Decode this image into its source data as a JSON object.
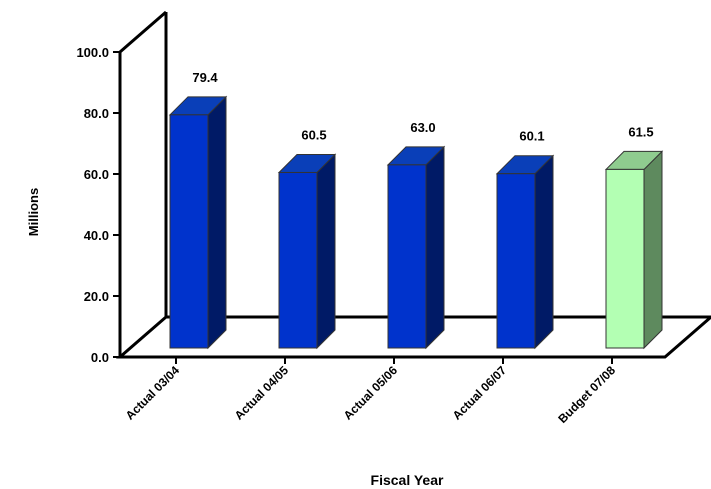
{
  "chart_data": {
    "type": "bar",
    "title": "",
    "xlabel": "Fiscal Year",
    "ylabel": "Millions",
    "ylim": [
      0,
      100
    ],
    "y_ticks": [
      "0.0",
      "20.0",
      "40.0",
      "60.0",
      "80.0",
      "100.0"
    ],
    "grid": false,
    "categories": [
      "Actual 03/04",
      "Actual 04/05",
      "Actual 05/06",
      "Actual 06/07",
      "Budget 07/08"
    ],
    "values": [
      79.4,
      60.5,
      63.0,
      60.1,
      61.5
    ],
    "value_labels": [
      "79.4",
      "60.5",
      "63.0",
      "60.1",
      "61.5"
    ],
    "bar_colors": [
      {
        "front": "#0033cc",
        "top": "#0a3fb8",
        "side": "#001a66"
      },
      {
        "front": "#0033cc",
        "top": "#0a3fb8",
        "side": "#001a66"
      },
      {
        "front": "#0033cc",
        "top": "#0a3fb8",
        "side": "#001a66"
      },
      {
        "front": "#0033cc",
        "top": "#0a3fb8",
        "side": "#001a66"
      },
      {
        "front": "#b3ffb3",
        "top": "#8fcc8f",
        "side": "#5e8a5e"
      }
    ]
  }
}
